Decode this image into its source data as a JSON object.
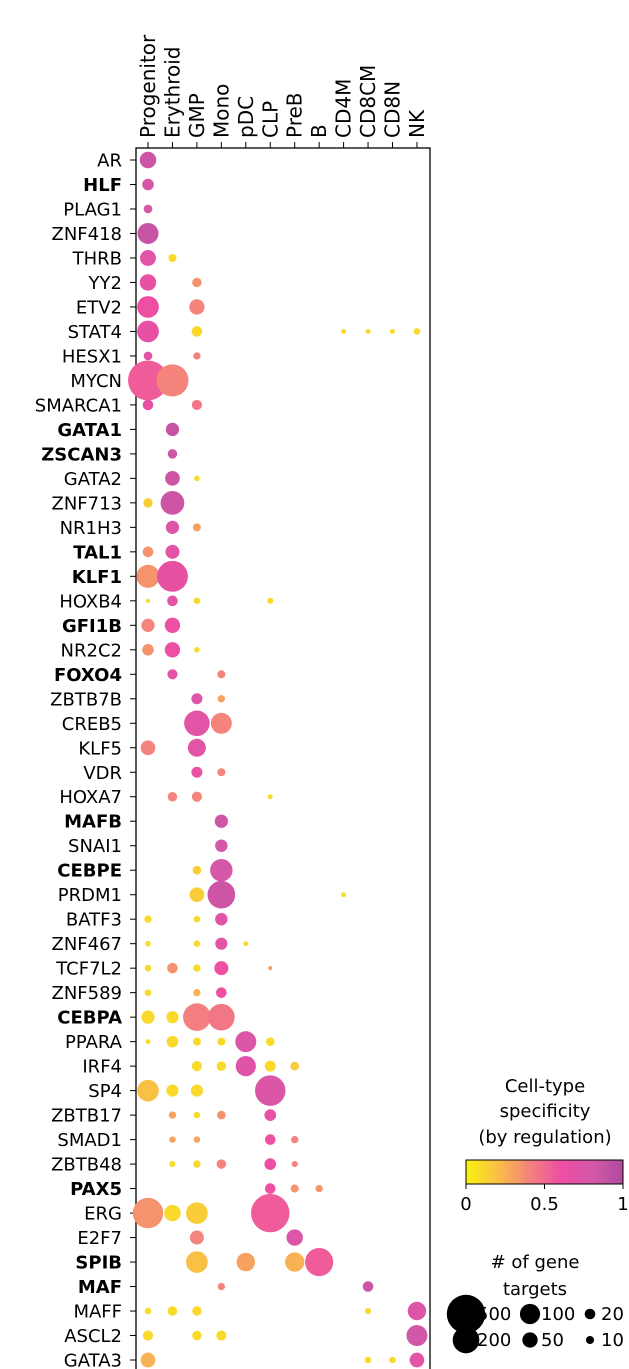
{
  "chart_data": {
    "type": "dotplot",
    "columns": [
      "Progenitor",
      "Erythroid",
      "GMP",
      "Mono",
      "pDC",
      "CLP",
      "PreB",
      "B",
      "CD4M",
      "CD8CM",
      "CD8N",
      "NK"
    ],
    "rows": [
      {
        "label": "AR",
        "highlight": false
      },
      {
        "label": "HLF",
        "highlight": true
      },
      {
        "label": "PLAG1",
        "highlight": false
      },
      {
        "label": "ZNF418",
        "highlight": false
      },
      {
        "label": "THRB",
        "highlight": false
      },
      {
        "label": "YY2",
        "highlight": false
      },
      {
        "label": "ETV2",
        "highlight": false
      },
      {
        "label": "STAT4",
        "highlight": false
      },
      {
        "label": "HESX1",
        "highlight": false
      },
      {
        "label": "MYCN",
        "highlight": false
      },
      {
        "label": "SMARCA1",
        "highlight": false
      },
      {
        "label": "GATA1",
        "highlight": true
      },
      {
        "label": "ZSCAN3",
        "highlight": true
      },
      {
        "label": "GATA2",
        "highlight": false
      },
      {
        "label": "ZNF713",
        "highlight": false
      },
      {
        "label": "NR1H3",
        "highlight": false
      },
      {
        "label": "TAL1",
        "highlight": true
      },
      {
        "label": "KLF1",
        "highlight": true
      },
      {
        "label": "HOXB4",
        "highlight": false
      },
      {
        "label": "GFI1B",
        "highlight": true
      },
      {
        "label": "NR2C2",
        "highlight": false
      },
      {
        "label": "FOXO4",
        "highlight": true
      },
      {
        "label": "ZBTB7B",
        "highlight": false
      },
      {
        "label": "CREB5",
        "highlight": false
      },
      {
        "label": "KLF5",
        "highlight": false
      },
      {
        "label": "VDR",
        "highlight": false
      },
      {
        "label": "HOXA7",
        "highlight": false
      },
      {
        "label": "MAFB",
        "highlight": true
      },
      {
        "label": "SNAI1",
        "highlight": false
      },
      {
        "label": "CEBPE",
        "highlight": true
      },
      {
        "label": "PRDM1",
        "highlight": false
      },
      {
        "label": "BATF3",
        "highlight": false
      },
      {
        "label": "ZNF467",
        "highlight": false
      },
      {
        "label": "TCF7L2",
        "highlight": false
      },
      {
        "label": "ZNF589",
        "highlight": false
      },
      {
        "label": "CEBPA",
        "highlight": true
      },
      {
        "label": "PPARA",
        "highlight": false
      },
      {
        "label": "IRF4",
        "highlight": false
      },
      {
        "label": "SP4",
        "highlight": false
      },
      {
        "label": "ZBTB17",
        "highlight": false
      },
      {
        "label": "SMAD1",
        "highlight": false
      },
      {
        "label": "ZBTB48",
        "highlight": false
      },
      {
        "label": "PAX5",
        "highlight": true
      },
      {
        "label": "ERG",
        "highlight": false
      },
      {
        "label": "E2F7",
        "highlight": false
      },
      {
        "label": "SPIB",
        "highlight": true
      },
      {
        "label": "MAF",
        "highlight": true
      },
      {
        "label": "MAFF",
        "highlight": false
      },
      {
        "label": "ASCL2",
        "highlight": false
      },
      {
        "label": "GATA3",
        "highlight": false
      }
    ],
    "points": [
      [
        "AR",
        "Progenitor",
        60,
        0.85
      ],
      [
        "HLF",
        "Progenitor",
        25,
        0.8
      ],
      [
        "PLAG1",
        "Progenitor",
        12,
        0.8
      ],
      [
        "ZNF418",
        "Progenitor",
        110,
        0.88
      ],
      [
        "THRB",
        "Progenitor",
        55,
        0.7
      ],
      [
        "THRB",
        "Erythroid",
        10,
        0.1
      ],
      [
        "YY2",
        "Progenitor",
        60,
        0.65
      ],
      [
        "YY2",
        "GMP",
        15,
        0.35
      ],
      [
        "ETV2",
        "Progenitor",
        120,
        0.6
      ],
      [
        "ETV2",
        "GMP",
        50,
        0.4
      ],
      [
        "STAT4",
        "Progenitor",
        120,
        0.65
      ],
      [
        "STAT4",
        "GMP",
        20,
        0.1
      ],
      [
        "STAT4",
        "CD4M",
        3,
        0.1
      ],
      [
        "STAT4",
        "CD8CM",
        3,
        0.1
      ],
      [
        "STAT4",
        "CD8N",
        3,
        0.1
      ],
      [
        "STAT4",
        "NK",
        6,
        0.1
      ],
      [
        "HESX1",
        "Progenitor",
        12,
        0.7
      ],
      [
        "HESX1",
        "GMP",
        8,
        0.4
      ],
      [
        "MYCN",
        "Progenitor",
        550,
        0.55
      ],
      [
        "MYCN",
        "Erythroid",
        320,
        0.4
      ],
      [
        "SMARCA1",
        "Progenitor",
        20,
        0.65
      ],
      [
        "SMARCA1",
        "GMP",
        18,
        0.45
      ],
      [
        "GATA1",
        "Erythroid",
        35,
        0.88
      ],
      [
        "ZSCAN3",
        "Erythroid",
        15,
        0.85
      ],
      [
        "GATA2",
        "Erythroid",
        45,
        0.85
      ],
      [
        "GATA2",
        "GMP",
        4,
        0.1
      ],
      [
        "ZNF713",
        "Progenitor",
        15,
        0.15
      ],
      [
        "ZNF713",
        "Erythroid",
        150,
        0.85
      ],
      [
        "NR1H3",
        "Erythroid",
        35,
        0.75
      ],
      [
        "NR1H3",
        "GMP",
        10,
        0.3
      ],
      [
        "TAL1",
        "Progenitor",
        20,
        0.35
      ],
      [
        "TAL1",
        "Erythroid",
        40,
        0.7
      ],
      [
        "KLF1",
        "Progenitor",
        140,
        0.35
      ],
      [
        "KLF1",
        "Erythroid",
        290,
        0.65
      ],
      [
        "HOXB4",
        "Progenitor",
        2,
        0.1
      ],
      [
        "HOXB4",
        "Erythroid",
        20,
        0.7
      ],
      [
        "HOXB4",
        "GMP",
        6,
        0.1
      ],
      [
        "HOXB4",
        "CLP",
        5,
        0.1
      ],
      [
        "GFI1B",
        "Progenitor",
        35,
        0.4
      ],
      [
        "GFI1B",
        "Erythroid",
        50,
        0.6
      ],
      [
        "NR2C2",
        "Progenitor",
        25,
        0.35
      ],
      [
        "NR2C2",
        "Erythroid",
        50,
        0.6
      ],
      [
        "NR2C2",
        "GMP",
        4,
        0.1
      ],
      [
        "FOXO4",
        "Erythroid",
        18,
        0.7
      ],
      [
        "FOXO4",
        "Mono",
        10,
        0.4
      ],
      [
        "ZBTB7B",
        "GMP",
        22,
        0.75
      ],
      [
        "ZBTB7B",
        "Mono",
        8,
        0.3
      ],
      [
        "CREB5",
        "GMP",
        180,
        0.7
      ],
      [
        "CREB5",
        "Mono",
        110,
        0.4
      ],
      [
        "KLF5",
        "Progenitor",
        45,
        0.4
      ],
      [
        "KLF5",
        "GMP",
        75,
        0.7
      ],
      [
        "VDR",
        "GMP",
        22,
        0.65
      ],
      [
        "VDR",
        "Mono",
        10,
        0.4
      ],
      [
        "HOXA7",
        "Erythroid",
        15,
        0.4
      ],
      [
        "HOXA7",
        "GMP",
        18,
        0.4
      ],
      [
        "HOXA7",
        "CLP",
        3,
        0.1
      ],
      [
        "MAFB",
        "Mono",
        35,
        0.85
      ],
      [
        "SNAI1",
        "Mono",
        30,
        0.8
      ],
      [
        "CEBPE",
        "GMP",
        12,
        0.15
      ],
      [
        "CEBPE",
        "Mono",
        130,
        0.8
      ],
      [
        "PRDM1",
        "GMP",
        45,
        0.15
      ],
      [
        "PRDM1",
        "Mono",
        220,
        0.85
      ],
      [
        "PRDM1",
        "CD4M",
        3,
        0.1
      ],
      [
        "BATF3",
        "Progenitor",
        8,
        0.1
      ],
      [
        "BATF3",
        "GMP",
        6,
        0.1
      ],
      [
        "BATF3",
        "Mono",
        30,
        0.7
      ],
      [
        "ZNF467",
        "Progenitor",
        4,
        0.1
      ],
      [
        "ZNF467",
        "GMP",
        6,
        0.1
      ],
      [
        "ZNF467",
        "Mono",
        28,
        0.7
      ],
      [
        "ZNF467",
        "pDC",
        3,
        0.1
      ],
      [
        "TCF7L2",
        "Progenitor",
        6,
        0.1
      ],
      [
        "TCF7L2",
        "Erythroid",
        20,
        0.35
      ],
      [
        "TCF7L2",
        "GMP",
        8,
        0.1
      ],
      [
        "TCF7L2",
        "Mono",
        40,
        0.6
      ],
      [
        "TCF7L2",
        "CLP",
        2,
        0.3
      ],
      [
        "ZNF589",
        "Progenitor",
        6,
        0.1
      ],
      [
        "ZNF589",
        "GMP",
        8,
        0.25
      ],
      [
        "ZNF589",
        "Mono",
        20,
        0.6
      ],
      [
        "CEBPA",
        "Progenitor",
        35,
        0.1
      ],
      [
        "CEBPA",
        "Erythroid",
        28,
        0.1
      ],
      [
        "CEBPA",
        "GMP",
        220,
        0.42
      ],
      [
        "CEBPA",
        "Mono",
        200,
        0.45
      ],
      [
        "PPARA",
        "Progenitor",
        3,
        0.1
      ],
      [
        "PPARA",
        "Erythroid",
        25,
        0.1
      ],
      [
        "PPARA",
        "GMP",
        10,
        0.1
      ],
      [
        "PPARA",
        "Mono",
        10,
        0.1
      ],
      [
        "PPARA",
        "pDC",
        110,
        0.75
      ],
      [
        "PPARA",
        "CLP",
        12,
        0.1
      ],
      [
        "IRF4",
        "GMP",
        18,
        0.1
      ],
      [
        "IRF4",
        "Mono",
        15,
        0.1
      ],
      [
        "IRF4",
        "pDC",
        100,
        0.72
      ],
      [
        "IRF4",
        "CLP",
        22,
        0.1
      ],
      [
        "IRF4",
        "PreB",
        12,
        0.15
      ],
      [
        "SP4",
        "Progenitor",
        120,
        0.2
      ],
      [
        "SP4",
        "Erythroid",
        28,
        0.1
      ],
      [
        "SP4",
        "GMP",
        28,
        0.1
      ],
      [
        "SP4",
        "CLP",
        280,
        0.75
      ],
      [
        "ZBTB17",
        "Erythroid",
        8,
        0.3
      ],
      [
        "ZBTB17",
        "GMP",
        6,
        0.1
      ],
      [
        "ZBTB17",
        "Mono",
        12,
        0.35
      ],
      [
        "ZBTB17",
        "CLP",
        25,
        0.65
      ],
      [
        "SMAD1",
        "Erythroid",
        6,
        0.3
      ],
      [
        "SMAD1",
        "GMP",
        6,
        0.3
      ],
      [
        "SMAD1",
        "CLP",
        20,
        0.6
      ],
      [
        "SMAD1",
        "PreB",
        8,
        0.4
      ],
      [
        "ZBTB48",
        "Erythroid",
        5,
        0.1
      ],
      [
        "ZBTB48",
        "GMP",
        8,
        0.1
      ],
      [
        "ZBTB48",
        "Mono",
        15,
        0.4
      ],
      [
        "ZBTB48",
        "CLP",
        25,
        0.6
      ],
      [
        "ZBTB48",
        "PreB",
        5,
        0.4
      ],
      [
        "PAX5",
        "CLP",
        20,
        0.6
      ],
      [
        "PAX5",
        "PreB",
        10,
        0.35
      ],
      [
        "PAX5",
        "B",
        8,
        0.35
      ],
      [
        "ERG",
        "Progenitor",
        280,
        0.35
      ],
      [
        "ERG",
        "Erythroid",
        60,
        0.1
      ],
      [
        "ERG",
        "GMP",
        120,
        0.15
      ],
      [
        "ERG",
        "CLP",
        500,
        0.55
      ],
      [
        "E2F7",
        "GMP",
        40,
        0.4
      ],
      [
        "E2F7",
        "PreB",
        60,
        0.75
      ],
      [
        "SPIB",
        "GMP",
        120,
        0.2
      ],
      [
        "SPIB",
        "pDC",
        80,
        0.3
      ],
      [
        "SPIB",
        "PreB",
        90,
        0.25
      ],
      [
        "SPIB",
        "B",
        230,
        0.55
      ],
      [
        "MAF",
        "Mono",
        8,
        0.4
      ],
      [
        "MAF",
        "CD8CM",
        20,
        0.85
      ],
      [
        "MAFF",
        "Progenitor",
        6,
        0.1
      ],
      [
        "MAFF",
        "Erythroid",
        15,
        0.1
      ],
      [
        "MAFF",
        "GMP",
        15,
        0.1
      ],
      [
        "MAFF",
        "CD8CM",
        5,
        0.1
      ],
      [
        "MAFF",
        "NK",
        80,
        0.75
      ],
      [
        "ASCL2",
        "Progenitor",
        18,
        0.1
      ],
      [
        "ASCL2",
        "GMP",
        15,
        0.1
      ],
      [
        "ASCL2",
        "Mono",
        18,
        0.1
      ],
      [
        "ASCL2",
        "NK",
        110,
        0.82
      ],
      [
        "GATA3",
        "Progenitor",
        45,
        0.25
      ],
      [
        "GATA3",
        "CD8CM",
        6,
        0.1
      ],
      [
        "GATA3",
        "CD8N",
        6,
        0.1
      ],
      [
        "GATA3",
        "NK",
        45,
        0.7
      ]
    ],
    "colorbar": {
      "title_lines": [
        "Cell-type",
        "specificity",
        "(by regulation)"
      ],
      "min": 0,
      "max": 1,
      "ticks": [
        {
          "value": 0,
          "label": "0"
        },
        {
          "value": 0.5,
          "label": "0.5"
        },
        {
          "value": 1,
          "label": "1"
        }
      ],
      "colormap": "spring-like",
      "colors": [
        "#f9f20f",
        "#f9c045",
        "#f4847c",
        "#ed4fa3",
        "#d558a8",
        "#b04b9d"
      ]
    },
    "size_legend": {
      "title_lines": [
        "# of gene",
        "targets"
      ],
      "entries": [
        {
          "value": 500,
          "label": "500"
        },
        {
          "value": 100,
          "label": "100"
        },
        {
          "value": 20,
          "label": "20"
        },
        {
          "value": 200,
          "label": "200"
        },
        {
          "value": 50,
          "label": "50"
        },
        {
          "value": 10,
          "label": "10"
        }
      ]
    },
    "highlight_color": "#d62728",
    "grid": false
  }
}
